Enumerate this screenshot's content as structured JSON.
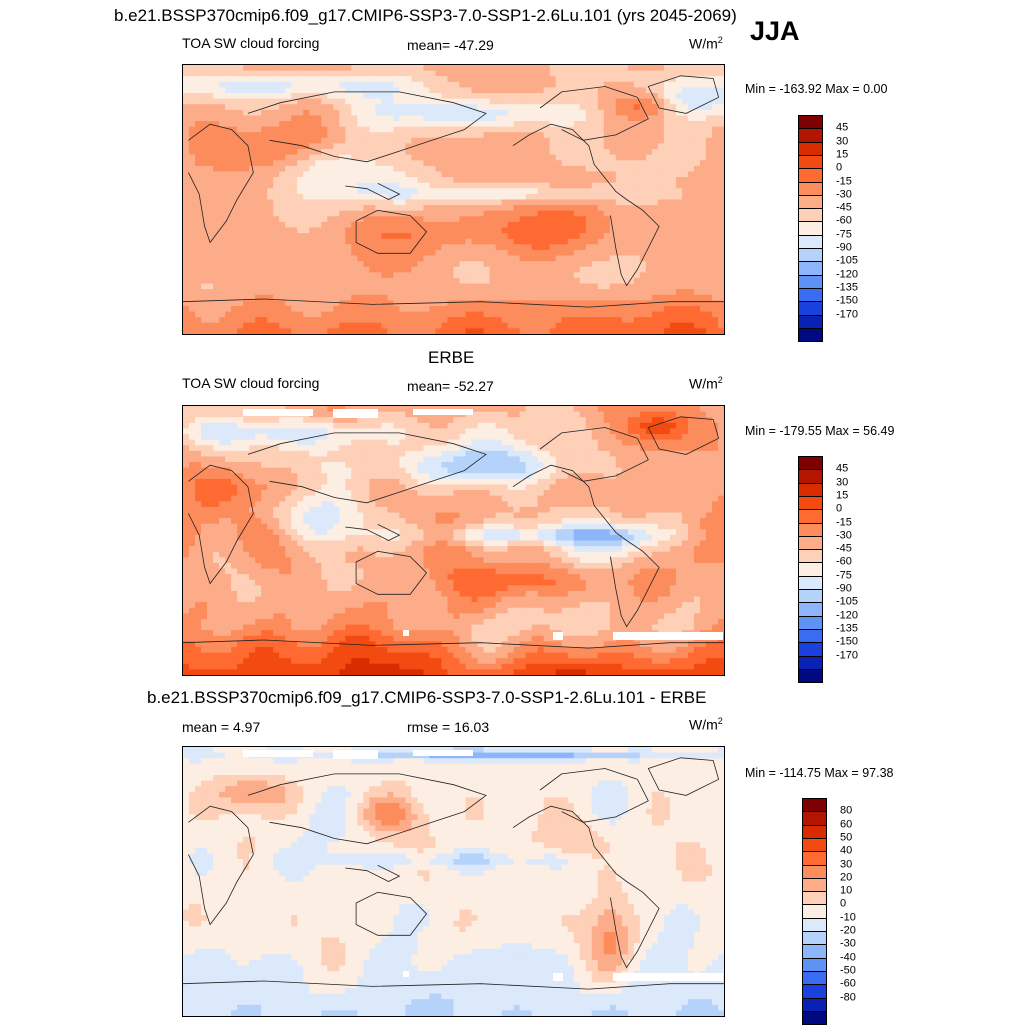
{
  "header": {
    "title": "b.e21.BSSP370cmip6.f09_g17.CMIP6-SSP3-7.0-SSP1-2.6Lu.101 (yrs 2045-2069)",
    "season": "JJA"
  },
  "panels": [
    {
      "id": "model",
      "panel_title": "",
      "left_label": "TOA SW cloud forcing",
      "center_label": "mean= -47.29",
      "units": "W/m",
      "units_sup": "2",
      "minmax": "Min = -163.92 Max =   0.00",
      "colorbar_levels": [
        "45",
        "30",
        "15",
        "0",
        "-15",
        "-30",
        "-45",
        "-60",
        "-75",
        "-90",
        "-105",
        "-120",
        "-135",
        "-150",
        "-170"
      ],
      "colorbar_colors": [
        "#7f0000",
        "#b31500",
        "#d92b00",
        "#f24a10",
        "#ff6a33",
        "#fc8c5c",
        "#fcac89",
        "#fdd0b7",
        "#fdeee3",
        "#dbe9fb",
        "#b5d2fb",
        "#8cb5fb",
        "#5e92f5",
        "#3a6cf2",
        "#1a40dd",
        "#0a22b3",
        "#000a80"
      ],
      "noise_seed": 7,
      "map_note": ""
    },
    {
      "id": "obs",
      "panel_title": "ERBE",
      "left_label": "TOA SW cloud forcing",
      "center_label": "mean= -52.27",
      "units": "W/m",
      "units_sup": "2",
      "minmax": "Min = -179.55 Max =  56.49",
      "colorbar_levels": [
        "45",
        "30",
        "15",
        "0",
        "-15",
        "-30",
        "-45",
        "-60",
        "-75",
        "-90",
        "-105",
        "-120",
        "-135",
        "-150",
        "-170"
      ],
      "colorbar_colors": [
        "#7f0000",
        "#b31500",
        "#d92b00",
        "#f24a10",
        "#ff6a33",
        "#fc8c5c",
        "#fcac89",
        "#fdd0b7",
        "#fdeee3",
        "#dbe9fb",
        "#b5d2fb",
        "#8cb5fb",
        "#5e92f5",
        "#3a6cf2",
        "#1a40dd",
        "#0a22b3",
        "#000a80"
      ],
      "noise_seed": 13,
      "map_note": ""
    },
    {
      "id": "diff",
      "panel_title": "b.e21.BSSP370cmip6.f09_g17.CMIP6-SSP3-7.0-SSP1-2.6Lu.101 - ERBE",
      "left_label": "mean =   4.97",
      "center_label": "rmse =  16.03",
      "units": "W/m",
      "units_sup": "2",
      "minmax": "Min = -114.75 Max =  97.38",
      "colorbar_levels": [
        "80",
        "60",
        "50",
        "40",
        "30",
        "20",
        "10",
        "0",
        "-10",
        "-20",
        "-30",
        "-40",
        "-50",
        "-60",
        "-80"
      ],
      "colorbar_colors": [
        "#7f0000",
        "#b31500",
        "#d92b00",
        "#f24a10",
        "#ff6a33",
        "#fc8c5c",
        "#fcac89",
        "#fdd0b7",
        "#fdeee3",
        "#dbe9fb",
        "#b5d2fb",
        "#8cb5fb",
        "#5e92f5",
        "#3a6cf2",
        "#1a40dd",
        "#0a22b3",
        "#000a80"
      ],
      "noise_seed": 21,
      "map_note": ""
    }
  ]
}
